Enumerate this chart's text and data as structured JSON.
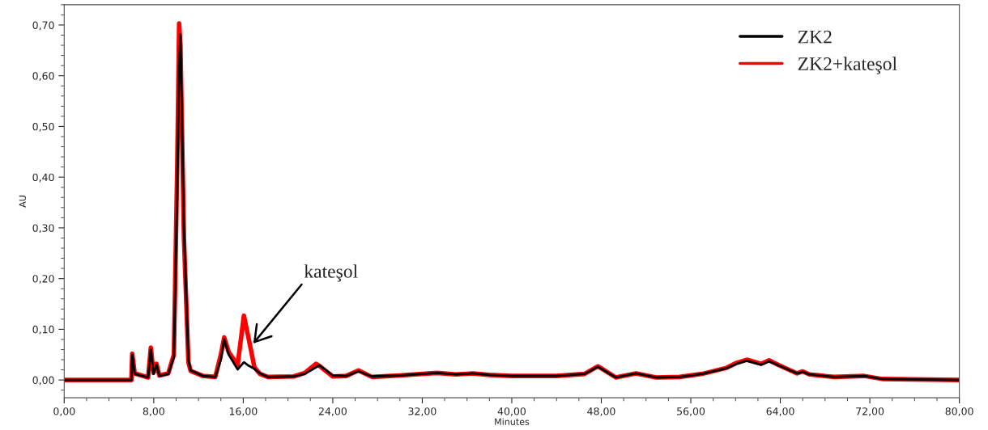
{
  "chart_data": {
    "type": "line",
    "xlabel": "Minutes",
    "ylabel": "AU",
    "x": [
      0,
      6.0,
      6.08,
      6.3,
      7.5,
      7.74,
      7.98,
      8.25,
      8.5,
      9.3,
      9.8,
      10.1,
      10.27,
      10.39,
      10.7,
      11.1,
      11.3,
      12.4,
      13.5,
      14.0,
      14.3,
      14.7,
      15.5,
      16.06,
      16.5,
      17.0,
      17.5,
      18.2,
      20.5,
      21.5,
      22.5,
      22.8,
      24.0,
      25.2,
      26.3,
      27.5,
      30.0,
      33.3,
      35.0,
      36.5,
      38.0,
      40.0,
      44.0,
      46.5,
      47.7,
      49.3,
      51.1,
      52.9,
      55.0,
      57.0,
      59.2,
      60.0,
      61.0,
      62.3,
      63.0,
      63.9,
      65.5,
      66.0,
      66.6,
      68.8,
      71.5,
      73.1,
      80.0
    ],
    "series": [
      {
        "name": "ZK2+kateşol",
        "color": "#ff0000",
        "values": [
          0,
          0.0,
          0.052,
          0.013,
          0.005,
          0.064,
          0.014,
          0.032,
          0.009,
          0.013,
          0.05,
          0.42,
          0.703,
          0.66,
          0.28,
          0.035,
          0.018,
          0.008,
          0.006,
          0.05,
          0.084,
          0.055,
          0.03,
          0.127,
          0.08,
          0.025,
          0.012,
          0.006,
          0.007,
          0.014,
          0.032,
          0.028,
          0.007,
          0.008,
          0.019,
          0.006,
          0.009,
          0.014,
          0.011,
          0.013,
          0.01,
          0.008,
          0.008,
          0.012,
          0.027,
          0.005,
          0.013,
          0.005,
          0.006,
          0.012,
          0.024,
          0.033,
          0.04,
          0.032,
          0.039,
          0.029,
          0.013,
          0.017,
          0.011,
          0.006,
          0.008,
          0.002,
          0.0
        ]
      },
      {
        "name": "ZK2",
        "color": "#000000",
        "values": [
          0,
          0.0,
          0.05,
          0.012,
          0.005,
          0.06,
          0.012,
          0.03,
          0.008,
          0.012,
          0.045,
          0.37,
          0.62,
          0.681,
          0.3,
          0.04,
          0.019,
          0.008,
          0.006,
          0.04,
          0.08,
          0.05,
          0.021,
          0.035,
          0.028,
          0.022,
          0.013,
          0.006,
          0.007,
          0.012,
          0.025,
          0.029,
          0.009,
          0.008,
          0.017,
          0.007,
          0.009,
          0.014,
          0.011,
          0.013,
          0.01,
          0.008,
          0.008,
          0.012,
          0.026,
          0.005,
          0.013,
          0.005,
          0.006,
          0.012,
          0.023,
          0.031,
          0.038,
          0.03,
          0.037,
          0.028,
          0.013,
          0.016,
          0.011,
          0.006,
          0.008,
          0.002,
          0.0
        ]
      }
    ],
    "xlim": [
      0,
      80
    ],
    "xticks": [
      {
        "value": 0,
        "label": "0,00"
      },
      {
        "value": 8,
        "label": "8,00"
      },
      {
        "value": 16,
        "label": "16,00"
      },
      {
        "value": 24,
        "label": "24,00"
      },
      {
        "value": 32,
        "label": "32,00"
      },
      {
        "value": 40,
        "label": "40,00"
      },
      {
        "value": 48,
        "label": "48,00"
      },
      {
        "value": 56,
        "label": "56,00"
      },
      {
        "value": 64,
        "label": "64,00"
      },
      {
        "value": 72,
        "label": "72,00"
      },
      {
        "value": 80,
        "label": "80,00"
      }
    ],
    "ylim": [
      -0.035,
      0.74
    ],
    "yticks": [
      {
        "value": 0,
        "label": "0,00"
      },
      {
        "value": 0.1,
        "label": "0,10"
      },
      {
        "value": 0.2,
        "label": "0,20"
      },
      {
        "value": 0.3,
        "label": "0,30"
      },
      {
        "value": 0.4,
        "label": "0,40"
      },
      {
        "value": 0.5,
        "label": "0,50"
      },
      {
        "value": 0.6,
        "label": "0,60"
      },
      {
        "value": 0.7,
        "label": "0,70"
      }
    ],
    "annotations": [
      {
        "text": "kateşol",
        "x": 16.9,
        "y": 0.072
      }
    ],
    "legend": "top right",
    "grid": false,
    "marker": "none",
    "line_style": "solid"
  }
}
